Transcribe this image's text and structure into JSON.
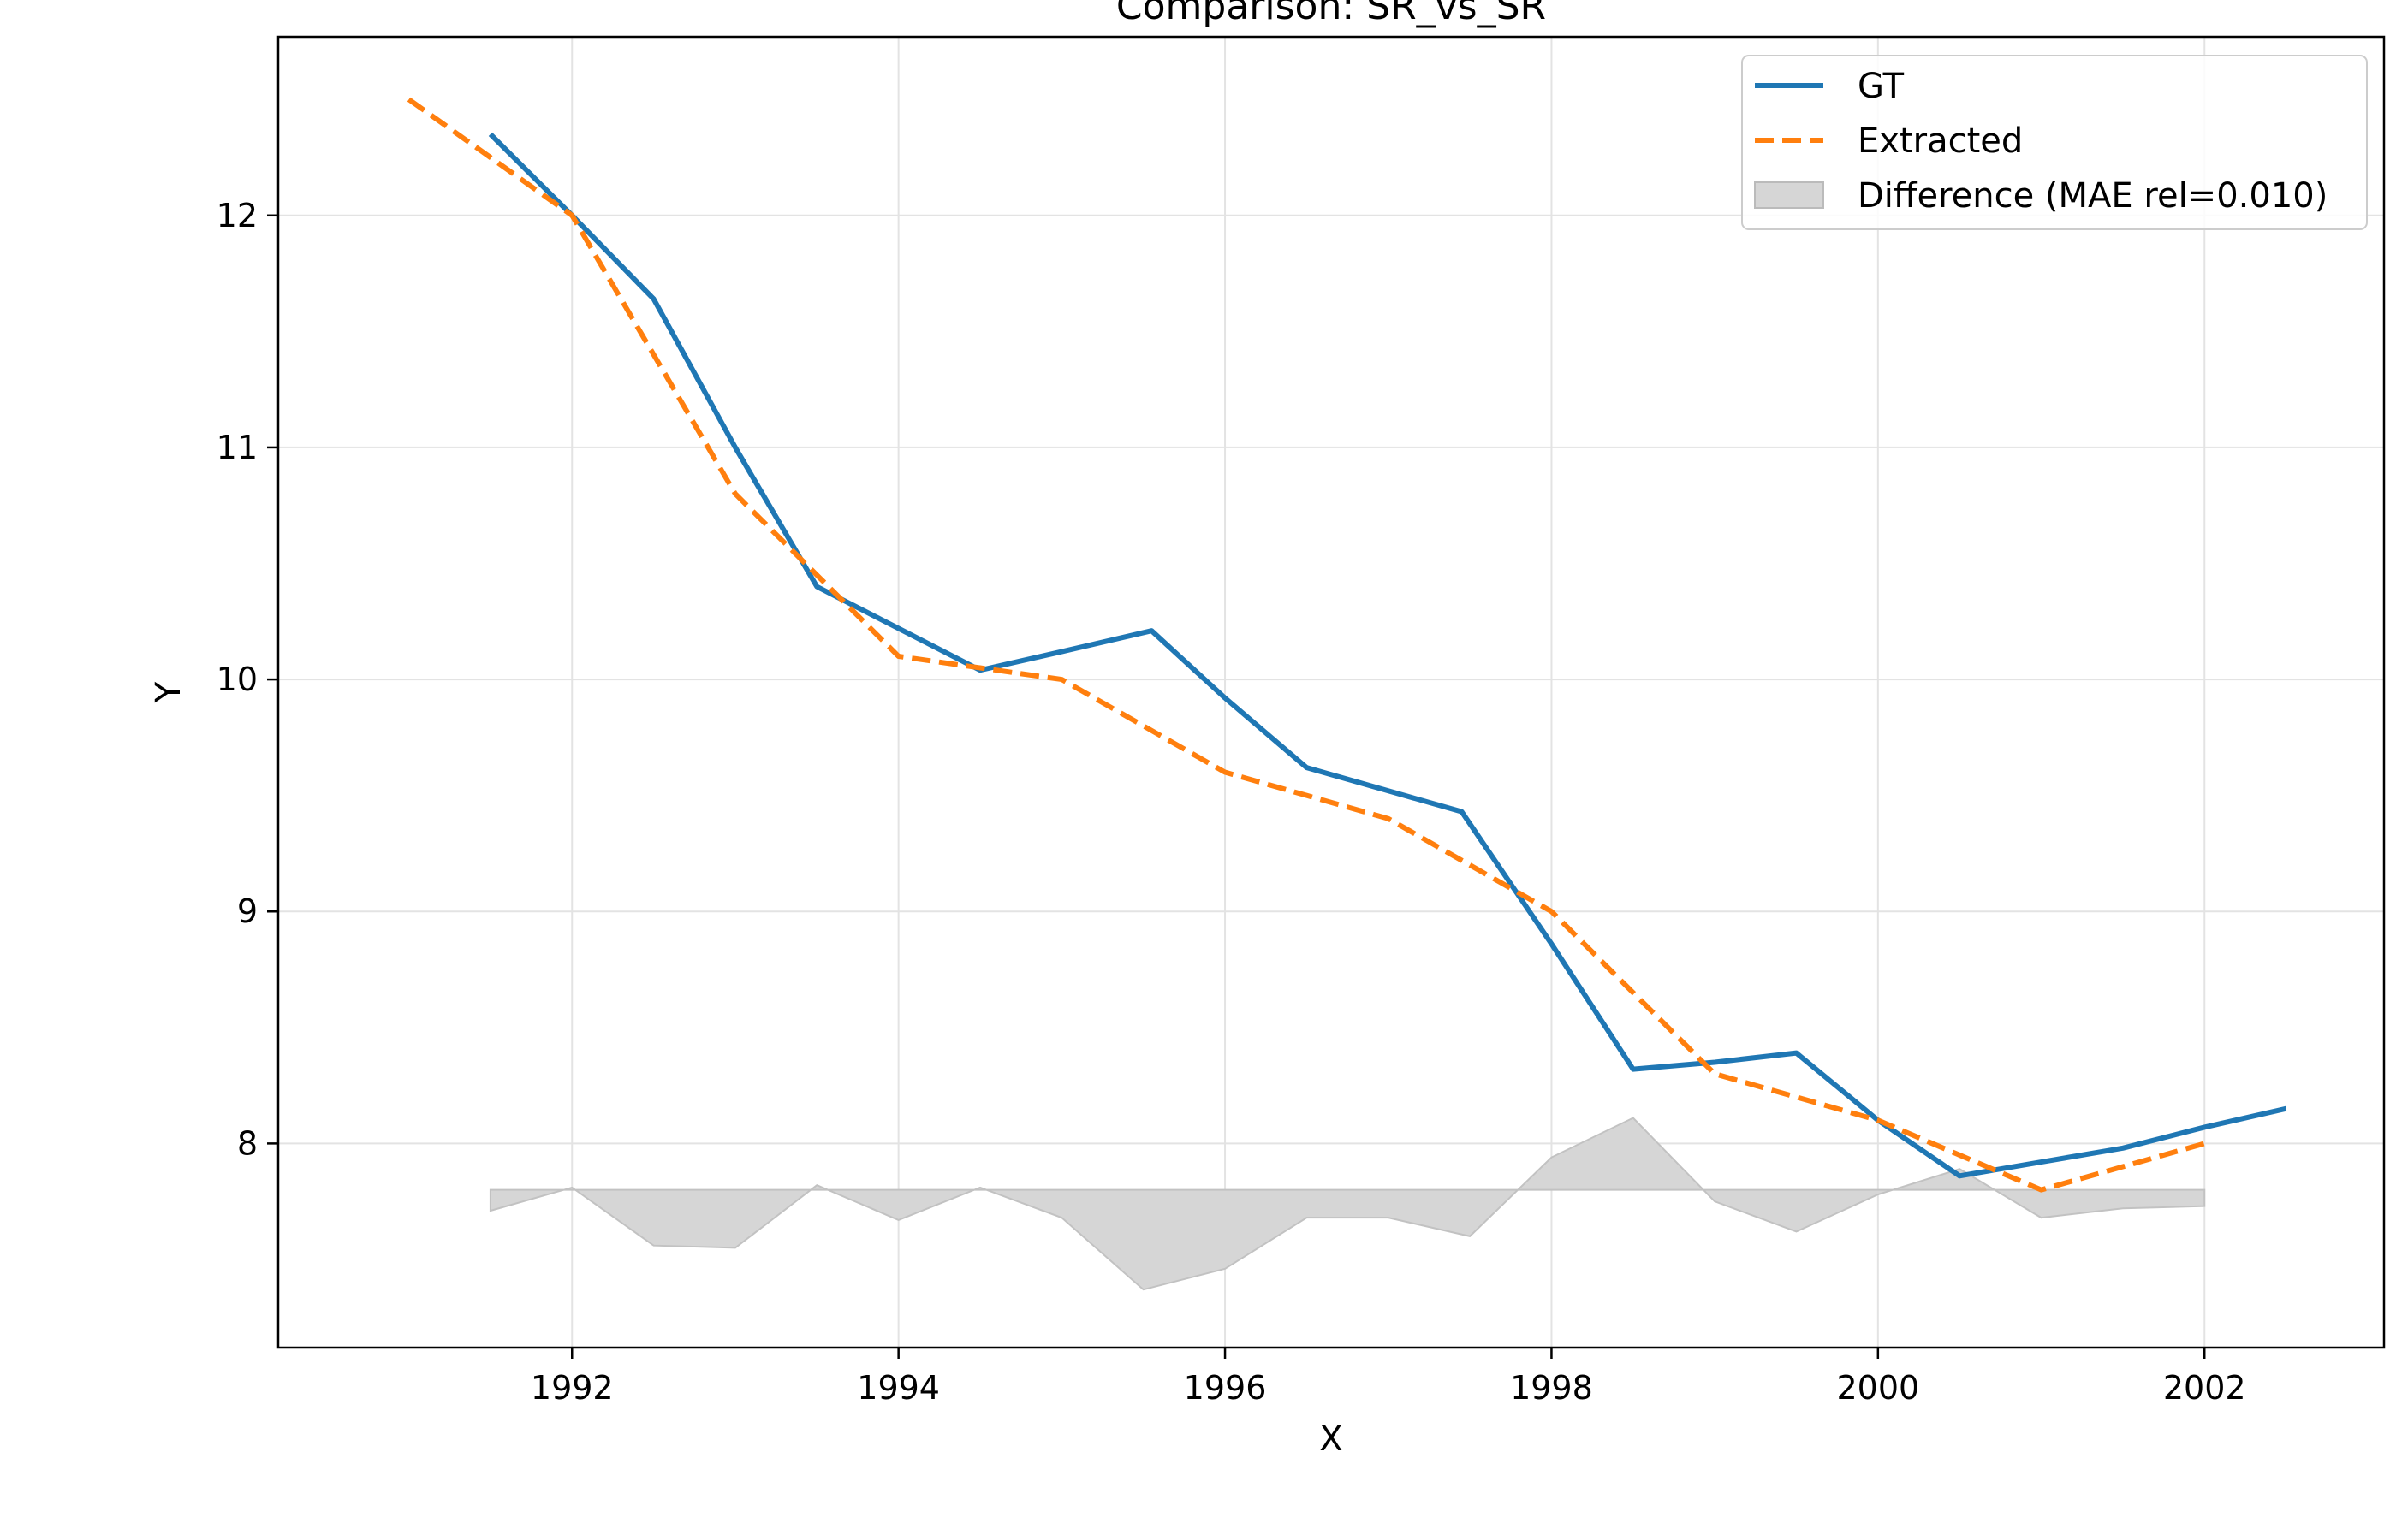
{
  "chart_data": {
    "type": "line",
    "title": "Comparison: SR_vs_SR",
    "xlabel": "X",
    "ylabel": "Y",
    "xlim": [
      1990.2,
      2003.1
    ],
    "ylim": [
      7.12,
      12.77
    ],
    "x_ticks": [
      1992,
      1994,
      1996,
      1998,
      2000,
      2002
    ],
    "y_ticks": [
      8,
      9,
      10,
      11,
      12
    ],
    "grid": true,
    "legend_position": "top-right",
    "series": [
      {
        "name": "GT",
        "style": "solid",
        "color": "#1f77b4",
        "x": [
          1991.5,
          1992.0,
          1992.5,
          1993.0,
          1993.5,
          1994.0,
          1994.5,
          1995.0,
          1995.55,
          1996.0,
          1996.5,
          1997.0,
          1997.45,
          1998.0,
          1998.5,
          1999.0,
          1999.5,
          2000.0,
          2000.5,
          2001.0,
          2001.5,
          2002.0,
          2002.5
        ],
        "y": [
          12.35,
          12.0,
          11.64,
          11.0,
          10.4,
          10.22,
          10.04,
          10.12,
          10.21,
          9.92,
          9.62,
          9.52,
          9.43,
          8.86,
          8.32,
          8.35,
          8.39,
          8.1,
          7.86,
          7.92,
          7.98,
          8.07,
          8.15
        ]
      },
      {
        "name": "Extracted",
        "style": "dashed",
        "color": "#ff7f0e",
        "x": [
          1991.0,
          1991.5,
          1992.0,
          1992.5,
          1993.0,
          1993.5,
          1994.0,
          1994.5,
          1995.0,
          1995.5,
          1996.0,
          1996.5,
          1997.0,
          1997.5,
          1998.0,
          1998.5,
          1999.0,
          1999.5,
          2000.0,
          2000.5,
          2001.0,
          2001.5,
          2002.0
        ],
        "y": [
          12.5,
          12.25,
          12.0,
          11.4,
          10.8,
          10.45,
          10.1,
          10.05,
          10.0,
          9.8,
          9.6,
          9.5,
          9.4,
          9.2,
          9.0,
          8.65,
          8.3,
          8.2,
          8.1,
          7.95,
          7.8,
          7.9,
          8.0
        ]
      }
    ],
    "difference": {
      "name": "Difference (MAE rel=0.010)",
      "color": "#d6d6d6",
      "baseline": 7.8,
      "x": [
        1991.5,
        1992.0,
        1992.5,
        1993.0,
        1993.5,
        1994.0,
        1994.5,
        1995.0,
        1995.5,
        1996.0,
        1996.5,
        1997.0,
        1997.5,
        1998.0,
        1998.5,
        1999.0,
        1999.5,
        2000.0,
        2000.5,
        2001.0,
        2001.5,
        2002.0
      ],
      "y": [
        7.71,
        7.81,
        7.56,
        7.55,
        7.82,
        7.67,
        7.81,
        7.68,
        7.37,
        7.46,
        7.68,
        7.68,
        7.6,
        7.94,
        8.11,
        7.75,
        7.62,
        7.78,
        7.89,
        7.68,
        7.72,
        7.73
      ]
    }
  }
}
